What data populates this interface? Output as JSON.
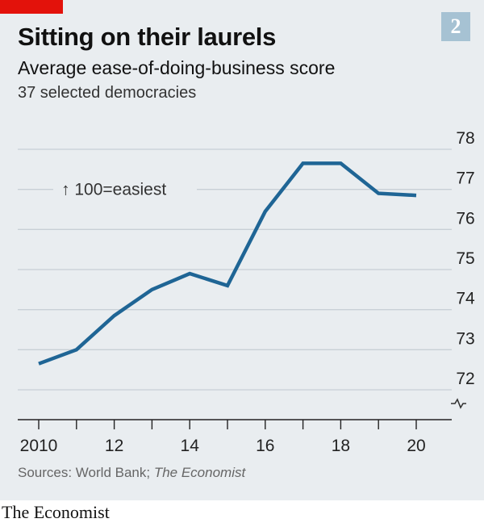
{
  "header": {
    "number": "2"
  },
  "footer": {
    "sources_prefix": "Sources: World Bank;",
    "sources_italic": "The Economist",
    "brand": "The Economist"
  },
  "colors": {
    "line": "#1f6595",
    "grid": "#c8d0d6",
    "background": "#e9edf0",
    "accent_red": "#e3120b",
    "badge": "#a6c2d3"
  },
  "chart_data": {
    "type": "line",
    "title": "Sitting on their laurels",
    "subtitle": "Average ease-of-doing-business score",
    "subtitle2": "37 selected democracies",
    "annotation": "↑ 100=easiest",
    "x": [
      2010,
      2011,
      2012,
      2013,
      2014,
      2015,
      2016,
      2017,
      2018,
      2019,
      2020
    ],
    "x_tick_values": [
      2010,
      2012,
      2014,
      2016,
      2018,
      2020
    ],
    "x_tick_labels": [
      "2010",
      "12",
      "14",
      "16",
      "18",
      "20"
    ],
    "series": [
      {
        "values": [
          72.65,
          73.0,
          73.85,
          74.5,
          74.9,
          74.6,
          76.45,
          77.65,
          77.65,
          76.9,
          76.85
        ]
      }
    ],
    "ylim": [
      72,
      78
    ],
    "y_ticks": [
      72,
      73,
      74,
      75,
      76,
      77,
      78
    ],
    "axis_break": true,
    "grid": true,
    "y_axis_side": "right"
  }
}
